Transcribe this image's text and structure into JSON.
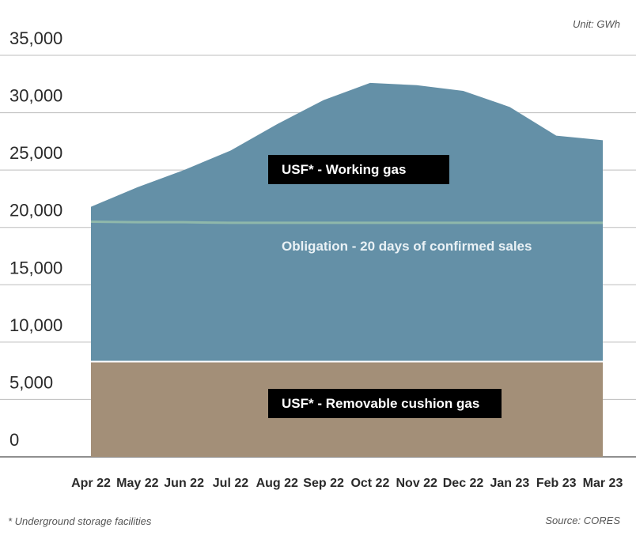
{
  "chart_data": {
    "type": "area",
    "categories": [
      "Apr 22",
      "May 22",
      "Jun 22",
      "Jul 22",
      "Aug 22",
      "Sep 22",
      "Oct 22",
      "Nov 22",
      "Dec 22",
      "Jan 23",
      "Feb 23",
      "Mar 23"
    ],
    "ylim": [
      0,
      35000
    ],
    "yticks": [
      0,
      5000,
      10000,
      15000,
      20000,
      25000,
      30000,
      35000
    ],
    "ytick_labels": [
      "0",
      "5,000",
      "10,000",
      "15,000",
      "20,000",
      "25,000",
      "30,000",
      "35,000"
    ],
    "grid": true,
    "series": [
      {
        "name": "USF* - Removable cushion gas",
        "values": [
          8300,
          8300,
          8300,
          8300,
          8300,
          8300,
          8300,
          8300,
          8300,
          8300,
          8300,
          8300
        ],
        "color": "#a38f78"
      },
      {
        "name": "USF* - Working gas",
        "values": [
          21800,
          23500,
          25000,
          26700,
          29000,
          31100,
          32600,
          32400,
          31900,
          30500,
          28000,
          27600
        ],
        "color": "#6490a7"
      }
    ],
    "reference_line": {
      "name": "Obligation - 20 days of confirmed sales",
      "values": [
        20500,
        20450,
        20450,
        20400,
        20400,
        20400,
        20400,
        20400,
        20400,
        20400,
        20400,
        20400
      ],
      "color": "#8fb8ab"
    },
    "unit_note": "Unit: GWh",
    "source_note": "Source: CORES",
    "footnote": "* Underground storage facilities"
  }
}
